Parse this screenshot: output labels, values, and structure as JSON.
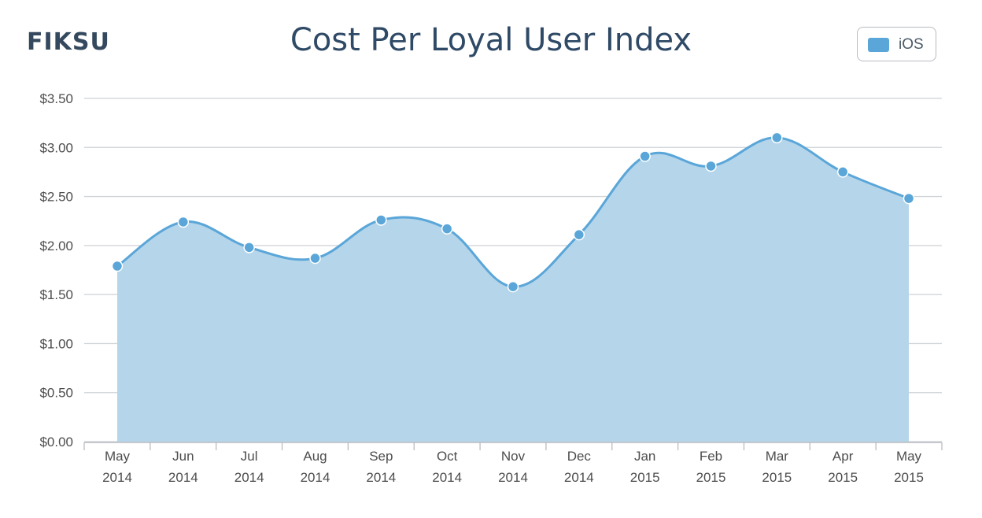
{
  "header": {
    "logo_text": "FIKSU",
    "title": "Cost Per Loyal User Index"
  },
  "legend": {
    "items": [
      {
        "label": "iOS",
        "color": "#5aa6d8"
      }
    ]
  },
  "chart_data": {
    "type": "area",
    "title": "Cost Per Loyal User Index",
    "xlabel": "",
    "ylabel": "",
    "categories": [
      [
        "May",
        "2014"
      ],
      [
        "Jun",
        "2014"
      ],
      [
        "Jul",
        "2014"
      ],
      [
        "Aug",
        "2014"
      ],
      [
        "Sep",
        "2014"
      ],
      [
        "Oct",
        "2014"
      ],
      [
        "Nov",
        "2014"
      ],
      [
        "Dec",
        "2014"
      ],
      [
        "Jan",
        "2015"
      ],
      [
        "Feb",
        "2015"
      ],
      [
        "Mar",
        "2015"
      ],
      [
        "Apr",
        "2015"
      ],
      [
        "May",
        "2015"
      ]
    ],
    "series": [
      {
        "name": "iOS",
        "values": [
          1.79,
          2.24,
          1.98,
          1.87,
          2.26,
          2.17,
          1.58,
          2.11,
          2.91,
          2.81,
          3.1,
          2.75,
          2.48
        ]
      }
    ],
    "ylim": [
      0,
      3.5
    ],
    "yticks": [
      0,
      0.5,
      1.0,
      1.5,
      2.0,
      2.5,
      3.0,
      3.5
    ],
    "ytick_labels": [
      "$0.00",
      "$0.50",
      "$1.00",
      "$1.50",
      "$2.00",
      "$2.50",
      "$3.00",
      "$3.50"
    ],
    "grid": true,
    "legend_position": "top-right",
    "colors": {
      "line": "#5aa6d8",
      "fill": "#b5d5eb",
      "grid": "#cfd2d6"
    }
  }
}
